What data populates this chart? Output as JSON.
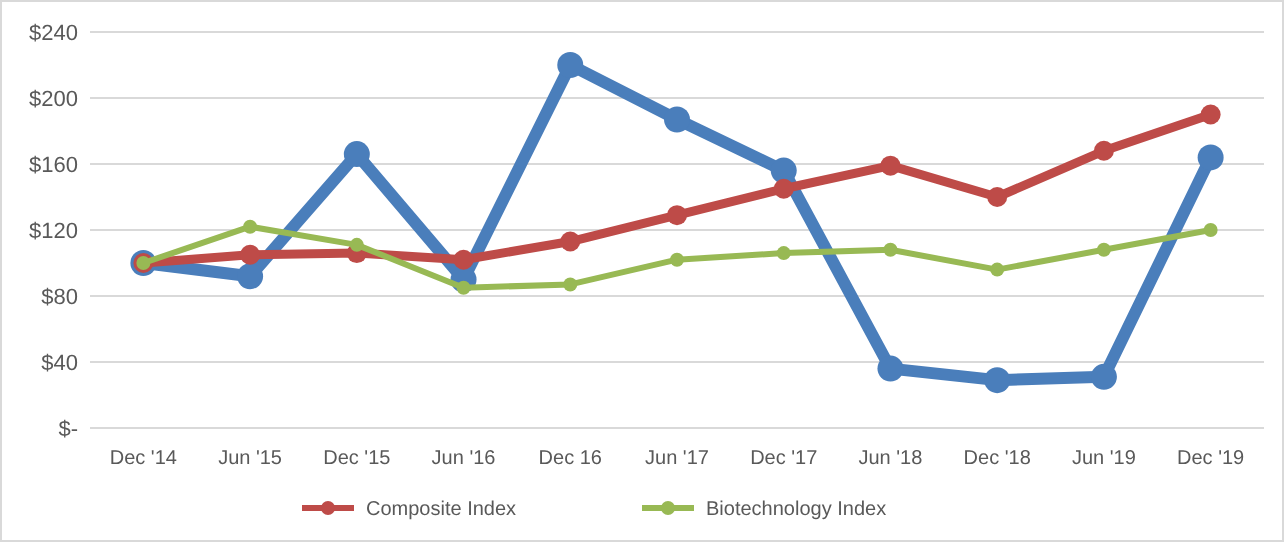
{
  "chart_data": {
    "type": "line",
    "categories": [
      "Dec '14",
      "Jun '15",
      "Dec '15",
      "Jun '16",
      "Dec 16",
      "Jun '17",
      "Dec '17",
      "Jun '18",
      "Dec '18",
      "Jun '19",
      "Dec '19"
    ],
    "series": [
      {
        "color": "#4a7ebb",
        "values": [
          100,
          92,
          166,
          90,
          220,
          187,
          156,
          36,
          29,
          31,
          164
        ]
      },
      {
        "name": "Composite Index",
        "color": "#be4b48",
        "values": [
          100,
          105,
          106,
          102,
          113,
          129,
          145,
          159,
          140,
          168,
          190
        ]
      },
      {
        "name": "Biotechnology Index",
        "color": "#98b954",
        "values": [
          100,
          122,
          111,
          85,
          87,
          102,
          106,
          108,
          96,
          108,
          120
        ]
      }
    ],
    "ylim": [
      0,
      240
    ],
    "yticks": [
      {
        "value": 0,
        "label": "$-"
      },
      {
        "value": 40,
        "label": "$40"
      },
      {
        "value": 80,
        "label": "$80"
      },
      {
        "value": 120,
        "label": "$120"
      },
      {
        "value": 160,
        "label": "$160"
      },
      {
        "value": 200,
        "label": "$200"
      },
      {
        "value": 240,
        "label": "$240"
      }
    ],
    "grid": "y",
    "legend": "bottom",
    "marker": "circle",
    "line_style": "solid"
  }
}
